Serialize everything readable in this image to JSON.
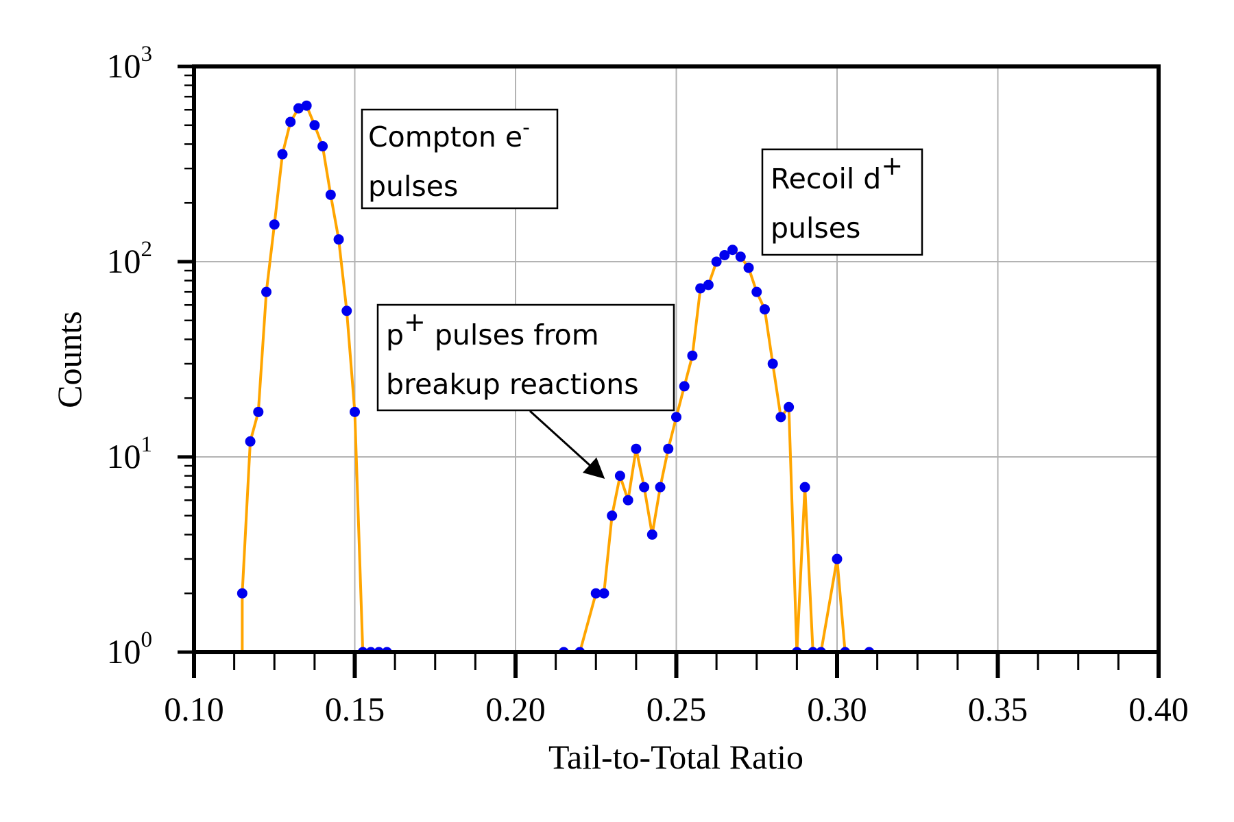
{
  "chart_data": {
    "type": "line",
    "title": "",
    "xlabel": "Tail-to-Total Ratio",
    "ylabel": "Counts",
    "xlim": [
      0.1,
      0.4
    ],
    "ylim": [
      1,
      1000
    ],
    "y_scale": "log",
    "grid": true,
    "x_ticks": [
      "0.10",
      "0.15",
      "0.20",
      "0.25",
      "0.30",
      "0.35",
      "0.40"
    ],
    "x_tick_values": [
      0.1,
      0.15,
      0.2,
      0.25,
      0.3,
      0.35,
      0.4
    ],
    "y_ticks": [
      {
        "base": "10",
        "exp": "0",
        "value": 1
      },
      {
        "base": "10",
        "exp": "1",
        "value": 10
      },
      {
        "base": "10",
        "exp": "2",
        "value": 100
      },
      {
        "base": "10",
        "exp": "3",
        "value": 1000
      }
    ],
    "colors": {
      "line": "#FFA500",
      "marker": "#0000EE",
      "axis": "#000000",
      "grid": "#B3B3B3"
    },
    "series": [
      {
        "x": [
          0.115,
          0.1175,
          0.12,
          0.1225,
          0.125,
          0.1275,
          0.13,
          0.1325,
          0.135,
          0.1375,
          0.14,
          0.1425,
          0.145,
          0.1475,
          0.15,
          0.1525,
          0.155,
          0.1575,
          0.16,
          0.215,
          0.22,
          0.225,
          0.2275,
          0.23,
          0.2325,
          0.235,
          0.2375,
          0.24,
          0.2425,
          0.245,
          0.2475,
          0.25,
          0.2525,
          0.255,
          0.2575,
          0.26,
          0.2625,
          0.265,
          0.2675,
          0.27,
          0.2725,
          0.275,
          0.2775,
          0.28,
          0.2825,
          0.285,
          0.2875,
          0.29,
          0.2925,
          0.295,
          0.3,
          0.3025,
          0.31
        ],
        "y": [
          2,
          12,
          17,
          70,
          155,
          355,
          520,
          610,
          630,
          500,
          390,
          220,
          130,
          56,
          17,
          1,
          1,
          1,
          1,
          1,
          1,
          2,
          2,
          5,
          8,
          6,
          11,
          7,
          4,
          7,
          11,
          16,
          23,
          33,
          73,
          76,
          100,
          108,
          115,
          106,
          93,
          70,
          57,
          30,
          16,
          18,
          1,
          7,
          1,
          1,
          3,
          1,
          1
        ]
      }
    ],
    "annotations": [
      {
        "id": "compton",
        "line1": "Compton e",
        "sup1": "-",
        "line2": "pulses"
      },
      {
        "id": "recoil",
        "line1": "Recoil d",
        "sup1": "+",
        "line2": "pulses"
      },
      {
        "id": "proton",
        "pre1": "p",
        "sup1": "+",
        "line1": " pulses from",
        "line2": "breakup reactions"
      }
    ]
  }
}
